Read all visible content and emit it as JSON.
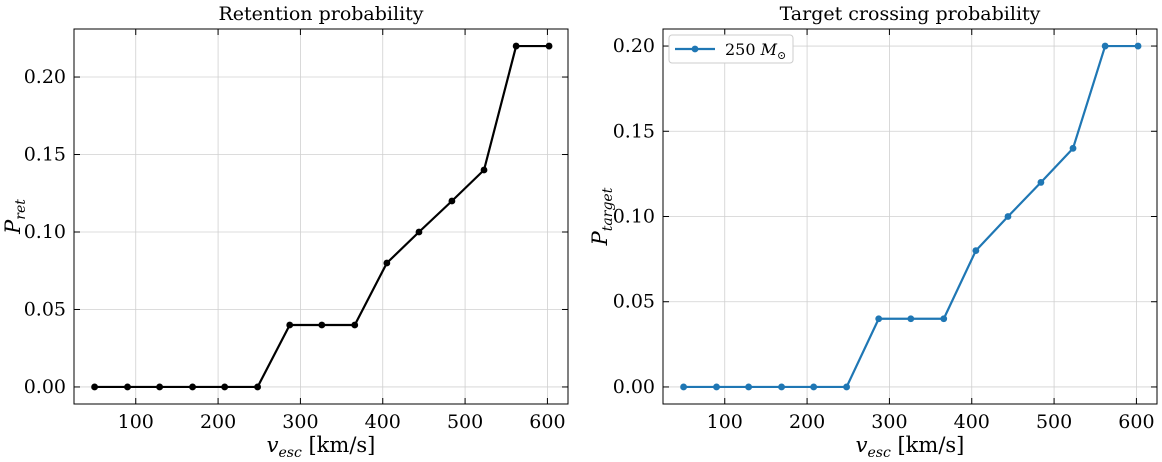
{
  "chart_data": [
    {
      "type": "line",
      "title": "Retention probability",
      "xlabel": {
        "var": "v",
        "sub": "esc",
        "unit": " [km/s]"
      },
      "ylabel": {
        "var": "P",
        "sub": "ret"
      },
      "xlim": [
        25,
        625
      ],
      "ylim": [
        -0.011,
        0.231
      ],
      "xticks": [
        100,
        200,
        300,
        400,
        500,
        600
      ],
      "yticks": [
        0.0,
        0.05,
        0.1,
        0.15,
        0.2
      ],
      "ytick_labels": [
        "0.00",
        "0.05",
        "0.10",
        "0.15",
        "0.20"
      ],
      "grid": true,
      "series": [
        {
          "color": "#000000",
          "x": [
            50,
            90,
            129,
            169,
            208,
            248,
            287,
            326,
            366,
            405,
            444,
            484,
            523,
            562,
            602
          ],
          "y": [
            0.0,
            0.0,
            0.0,
            0.0,
            0.0,
            0.0,
            0.04,
            0.04,
            0.04,
            0.08,
            0.1,
            0.12,
            0.14,
            0.22,
            0.22
          ]
        }
      ]
    },
    {
      "type": "line",
      "title": "Target crossing probability",
      "xlabel": {
        "var": "v",
        "sub": "esc",
        "unit": " [km/s]"
      },
      "ylabel": {
        "var": "P",
        "sub": "target"
      },
      "xlim": [
        25,
        625
      ],
      "ylim": [
        -0.01,
        0.21
      ],
      "xticks": [
        100,
        200,
        300,
        400,
        500,
        600
      ],
      "yticks": [
        0.0,
        0.05,
        0.1,
        0.15,
        0.2
      ],
      "ytick_labels": [
        "0.00",
        "0.05",
        "0.10",
        "0.15",
        "0.20"
      ],
      "grid": true,
      "legend": "top-left",
      "series": [
        {
          "name": "250",
          "name_unit_var": "M",
          "name_unit_sub": "⊙",
          "color": "#1f77b4",
          "x": [
            50,
            90,
            129,
            169,
            208,
            248,
            287,
            326,
            366,
            405,
            444,
            484,
            523,
            562,
            602
          ],
          "y": [
            0.0,
            0.0,
            0.0,
            0.0,
            0.0,
            0.0,
            0.04,
            0.04,
            0.04,
            0.08,
            0.1,
            0.12,
            0.14,
            0.2,
            0.2
          ]
        }
      ]
    }
  ]
}
